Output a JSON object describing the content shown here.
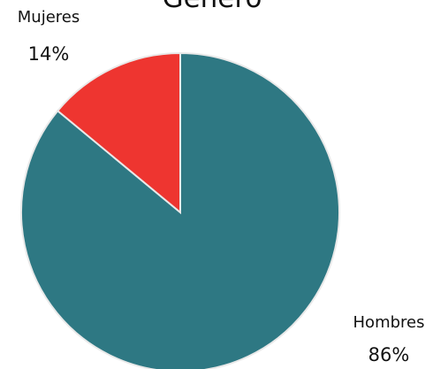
{
  "chart_data": {
    "type": "pie",
    "title": "Genero",
    "slices": [
      {
        "label": "Hombres",
        "value": 86,
        "value_label": "86%",
        "color": "#2e7883"
      },
      {
        "label": "Mujeres",
        "value": 14,
        "value_label": "14%",
        "color": "#ee3530"
      }
    ],
    "start_angle": "12 o'clock",
    "direction": "clockwise",
    "slice_border_color": "#e9e9e9",
    "legend": "none"
  }
}
